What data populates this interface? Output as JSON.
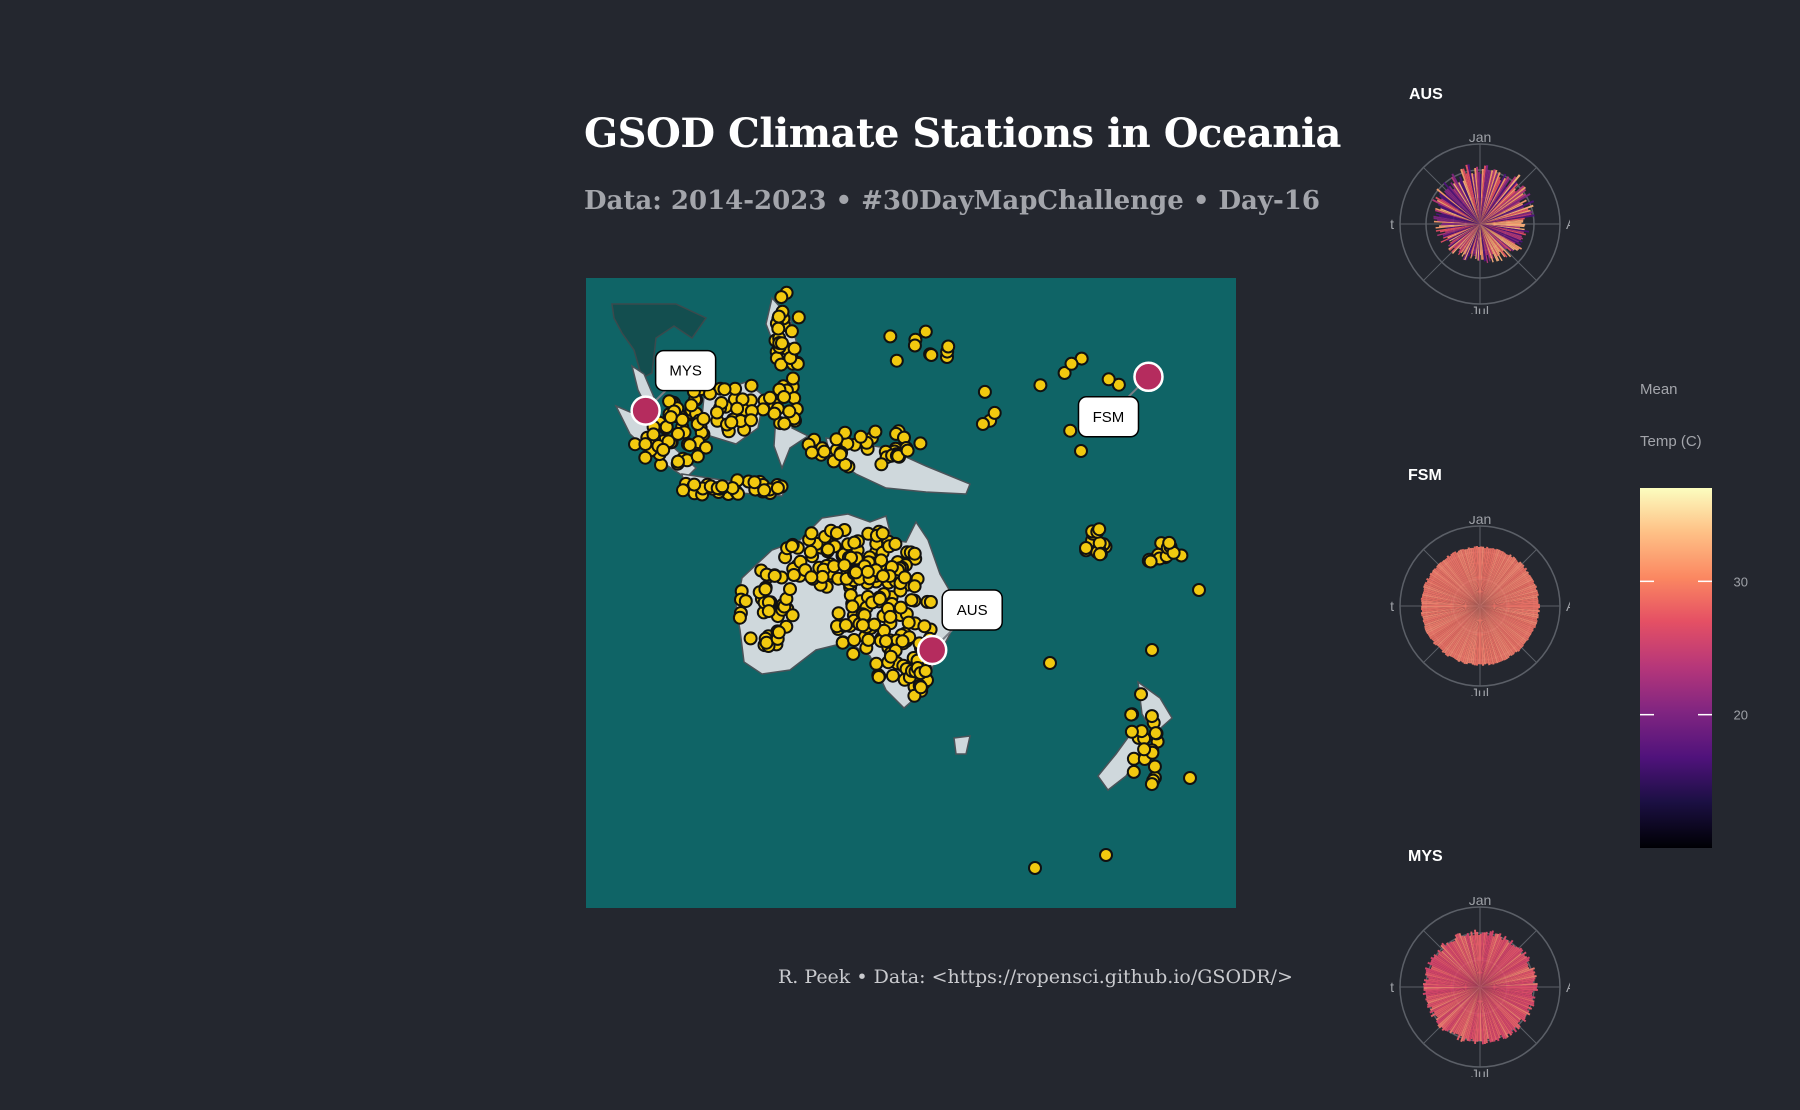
{
  "title": "GSOD Climate Stations in Oceania",
  "subtitle": "Data: 2014-2023 • #30DayMapChallenge • Day-16",
  "caption": "R. Peek • Data: <https://ropensci.github.io/GSODR/>",
  "colors": {
    "background": "#24272f",
    "ocean": "#0f6466",
    "land": "#cfd8dc",
    "station_fill": "#f2c90f",
    "station_stroke": "#111111",
    "highlight_fill": "#b52c5e",
    "highlight_stroke": "#ffffff"
  },
  "map": {
    "highlighted_stations": [
      {
        "label": "MYS",
        "lon": 101.7,
        "lat": 3.1
      },
      {
        "label": "FSM",
        "lon": 158.2,
        "lat": 6.9
      },
      {
        "label": "AUS",
        "lon": 133.9,
        "lat": -23.8
      }
    ]
  },
  "polar_charts": [
    {
      "country": "AUS",
      "axis_labels": [
        "Jan",
        "Apr",
        "Jul",
        "Oct"
      ]
    },
    {
      "country": "FSM",
      "axis_labels": [
        "Jan",
        "Apr",
        "Jul",
        "Oct"
      ]
    },
    {
      "country": "MYS",
      "axis_labels": [
        "Jan",
        "Apr",
        "Jul",
        "Oct"
      ]
    }
  ],
  "legend": {
    "title_line1": "Mean",
    "title_line2": "Temp (C)",
    "ticks": [
      "30",
      "20"
    ],
    "tick_values": [
      30,
      20
    ],
    "range": [
      10,
      37
    ]
  }
}
